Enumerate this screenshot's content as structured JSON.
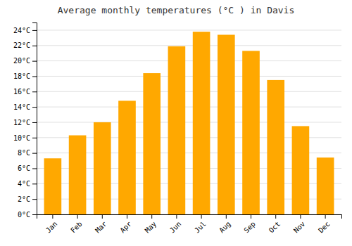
{
  "chart_data": {
    "type": "bar",
    "title": "Average monthly temperatures (°C ) in Davis",
    "categories": [
      "Jan",
      "Feb",
      "Mar",
      "Apr",
      "May",
      "Jun",
      "Jul",
      "Aug",
      "Sep",
      "Oct",
      "Nov",
      "Dec"
    ],
    "values": [
      7.3,
      10.3,
      12.0,
      14.8,
      18.4,
      21.9,
      23.8,
      23.4,
      21.3,
      17.5,
      11.5,
      7.4
    ],
    "color": "#FFA800",
    "ylim": [
      0,
      25
    ],
    "yticks": [
      {
        "value": 0,
        "label": "0°C"
      },
      {
        "value": 2,
        "label": "2°C"
      },
      {
        "value": 4,
        "label": "4°C"
      },
      {
        "value": 6,
        "label": "6°C"
      },
      {
        "value": 8,
        "label": "8°C"
      },
      {
        "value": 10,
        "label": "10°C"
      },
      {
        "value": 12,
        "label": "12°C"
      },
      {
        "value": 14,
        "label": "14°C"
      },
      {
        "value": 16,
        "label": "16°C"
      },
      {
        "value": 18,
        "label": "18°C"
      },
      {
        "value": 20,
        "label": "20°C"
      },
      {
        "value": 22,
        "label": "22°C"
      },
      {
        "value": 24,
        "label": "24°C"
      }
    ],
    "grid": true
  }
}
